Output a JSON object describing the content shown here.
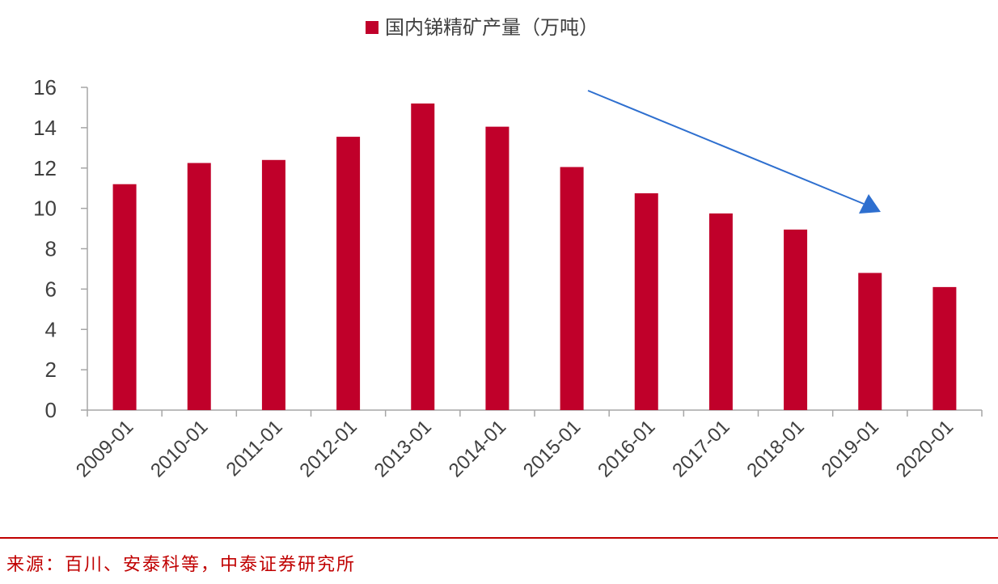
{
  "chart_data": {
    "type": "bar",
    "legend": {
      "label": "国内锑精矿产量（万吨）",
      "position": "top-center"
    },
    "categories": [
      "2009-01",
      "2010-01",
      "2011-01",
      "2012-01",
      "2013-01",
      "2014-01",
      "2015-01",
      "2016-01",
      "2017-01",
      "2018-01",
      "2019-01",
      "2020-01"
    ],
    "series": [
      {
        "name": "国内锑精矿产量（万吨）",
        "values": [
          11.2,
          12.25,
          12.4,
          13.55,
          15.2,
          14.05,
          12.05,
          10.75,
          9.75,
          8.95,
          6.8,
          6.1
        ]
      }
    ],
    "ylim": [
      0,
      16
    ],
    "yticks": [
      0,
      2,
      4,
      6,
      8,
      10,
      12,
      14,
      16
    ],
    "grid": false,
    "annotation": {
      "type": "arrow",
      "direction": "downward trend",
      "color": "#2e6fcf"
    },
    "colors": {
      "bar": "#c0002a",
      "axis": "#a6a6a6",
      "text": "#404040",
      "source": "#c00000"
    }
  },
  "footer": {
    "source": "来源：百川、安泰科等，中泰证券研究所"
  }
}
